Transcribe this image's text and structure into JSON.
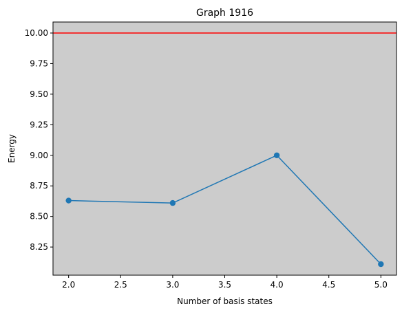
{
  "chart_data": {
    "type": "line",
    "title": "Graph 1916",
    "xlabel": "Number of basis states",
    "ylabel": "Energy",
    "xlim": [
      1.85,
      5.15
    ],
    "ylim": [
      8.02,
      10.09
    ],
    "x_ticks": [
      2.0,
      2.5,
      3.0,
      3.5,
      4.0,
      4.5,
      5.0
    ],
    "x_tick_labels": [
      "2.0",
      "2.5",
      "3.0",
      "3.5",
      "4.0",
      "4.5",
      "5.0"
    ],
    "y_ticks": [
      8.25,
      8.5,
      8.75,
      9.0,
      9.25,
      9.5,
      9.75,
      10.0
    ],
    "y_tick_labels": [
      "8.25",
      "8.50",
      "8.75",
      "9.00",
      "9.25",
      "9.50",
      "9.75",
      "10.00"
    ],
    "grid": false,
    "background_color": "#cccccc",
    "series": [
      {
        "x": [
          2,
          3,
          4,
          5
        ],
        "values": [
          8.63,
          8.61,
          9.0,
          8.11
        ],
        "color": "#1f77b4",
        "marker": "circle"
      }
    ],
    "reference_lines": [
      {
        "orientation": "horizontal",
        "y": 10.0,
        "color": "#ff0000"
      }
    ]
  }
}
